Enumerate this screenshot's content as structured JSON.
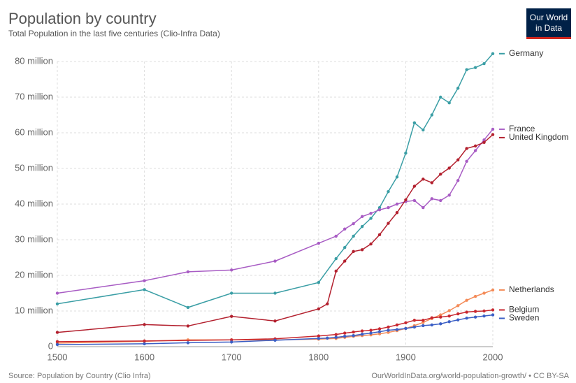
{
  "chart_data": {
    "type": "line",
    "title": "Population by country",
    "subtitle": "Total Population in the last five centuries (Clio-Infra Data)",
    "source": "Source: Population by Country (Clio Infra)",
    "footer": "OurWorldInData.org/world-population-growth/ • CC BY-SA",
    "logo": [
      "Our World",
      "in Data"
    ],
    "xlim": [
      1500,
      2000
    ],
    "xticks": [
      1500,
      1600,
      1700,
      1800,
      1900,
      2000
    ],
    "ylim": [
      0,
      80
    ],
    "yticks": [
      0,
      {
        "value": 10,
        "label": "10 million"
      },
      {
        "value": 20,
        "label": "20 million"
      },
      {
        "value": 30,
        "label": "30 million"
      },
      {
        "value": 40,
        "label": "40 million"
      },
      {
        "value": 50,
        "label": "50 million"
      },
      {
        "value": 60,
        "label": "60 million"
      },
      {
        "value": 70,
        "label": "70 million"
      },
      {
        "value": 80,
        "label": "80 million"
      }
    ],
    "grid": true,
    "series": [
      {
        "name": "Germany",
        "color": "#3a9ea5",
        "x": [
          1500,
          1600,
          1650,
          1700,
          1750,
          1800,
          1820,
          1830,
          1840,
          1850,
          1860,
          1870,
          1880,
          1890,
          1900,
          1910,
          1920,
          1930,
          1940,
          1950,
          1960,
          1970,
          1980,
          1990,
          2000
        ],
        "values": [
          12,
          16,
          11,
          15,
          15,
          18,
          24.7,
          27.8,
          31,
          33.7,
          36,
          39,
          43.5,
          47.6,
          54.3,
          62.8,
          60.8,
          65,
          70,
          68.4,
          72.5,
          77.7,
          78.3,
          79.4,
          82.2
        ]
      },
      {
        "name": "France",
        "color": "#a85cc4",
        "x": [
          1500,
          1600,
          1650,
          1700,
          1750,
          1800,
          1820,
          1830,
          1840,
          1850,
          1860,
          1870,
          1880,
          1890,
          1900,
          1910,
          1920,
          1930,
          1940,
          1950,
          1960,
          1970,
          1980,
          1990,
          2000
        ],
        "values": [
          15,
          18.5,
          21,
          21.5,
          24,
          29,
          31,
          33,
          34.5,
          36.5,
          37.4,
          38.4,
          39,
          40,
          40.7,
          41,
          39,
          41.5,
          41,
          42.5,
          46.6,
          52,
          55,
          58,
          61
        ]
      },
      {
        "name": "United Kingdom",
        "color": "#b3202e",
        "x": [
          1500,
          1600,
          1650,
          1700,
          1750,
          1800,
          1810,
          1820,
          1830,
          1840,
          1850,
          1860,
          1870,
          1880,
          1890,
          1900,
          1910,
          1920,
          1930,
          1940,
          1950,
          1960,
          1970,
          1980,
          1990,
          2000
        ],
        "values": [
          4,
          6.2,
          5.8,
          8.5,
          7.2,
          10.6,
          12,
          21.2,
          24,
          26.7,
          27.2,
          28.8,
          31.4,
          34.6,
          37.6,
          41.2,
          45,
          47,
          46,
          48.4,
          50.1,
          52.4,
          55.6,
          56.3,
          57.3,
          59.5
        ]
      },
      {
        "name": "Netherlands",
        "color": "#f48b58",
        "x": [
          1500,
          1600,
          1650,
          1700,
          1750,
          1800,
          1820,
          1830,
          1840,
          1850,
          1860,
          1870,
          1880,
          1890,
          1900,
          1910,
          1920,
          1930,
          1940,
          1950,
          1960,
          1970,
          1980,
          1990,
          2000
        ],
        "values": [
          1,
          1.5,
          1.9,
          1.9,
          1.9,
          2.1,
          2.3,
          2.6,
          2.9,
          3.1,
          3.3,
          3.6,
          4,
          4.5,
          5.1,
          5.9,
          6.8,
          7.9,
          8.9,
          10.1,
          11.5,
          13,
          14.1,
          15,
          15.9
        ]
      },
      {
        "name": "Belgium",
        "color": "#c8272f",
        "x": [
          1500,
          1600,
          1700,
          1750,
          1800,
          1820,
          1830,
          1840,
          1850,
          1860,
          1870,
          1880,
          1890,
          1900,
          1910,
          1920,
          1930,
          1940,
          1950,
          1960,
          1970,
          1980,
          1990,
          2000
        ],
        "values": [
          1.4,
          1.6,
          1.9,
          2.2,
          3,
          3.4,
          3.8,
          4.1,
          4.4,
          4.6,
          5,
          5.5,
          6.1,
          6.7,
          7.4,
          7.4,
          8.1,
          8.3,
          8.6,
          9.2,
          9.7,
          9.9,
          10,
          10.3
        ]
      },
      {
        "name": "Sweden",
        "color": "#3b5fc5",
        "x": [
          1500,
          1600,
          1650,
          1700,
          1750,
          1800,
          1810,
          1820,
          1830,
          1840,
          1850,
          1860,
          1870,
          1880,
          1890,
          1900,
          1910,
          1920,
          1930,
          1940,
          1950,
          1960,
          1970,
          1980,
          1990,
          2000
        ],
        "values": [
          0.6,
          0.8,
          1.1,
          1.3,
          1.8,
          2.3,
          2.4,
          2.6,
          2.9,
          3.1,
          3.5,
          3.8,
          4.2,
          4.6,
          4.8,
          5.1,
          5.5,
          5.9,
          6.1,
          6.4,
          7,
          7.5,
          8,
          8.3,
          8.6,
          8.9
        ]
      }
    ]
  }
}
